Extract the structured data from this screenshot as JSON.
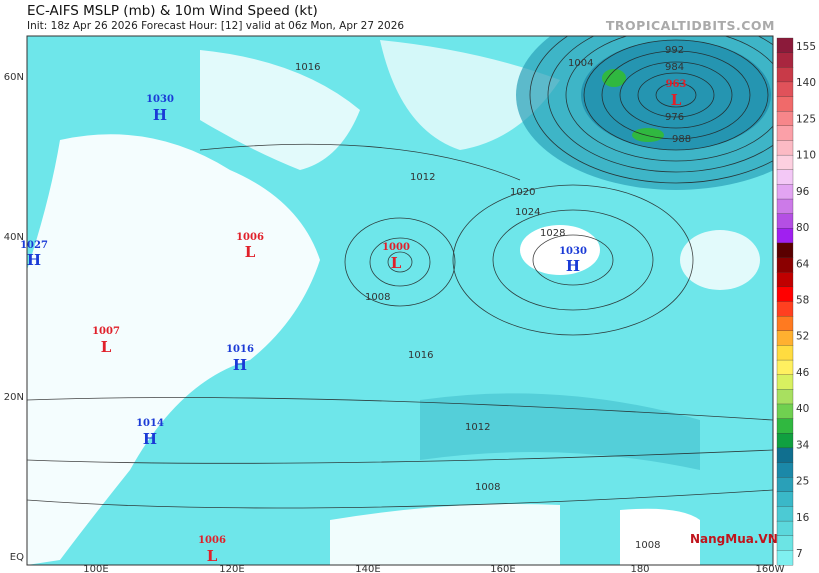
{
  "header": {
    "title": "EC-AIFS MSLP (mb) & 10m Wind Speed (kt)",
    "subtitle": "Init: 18z Apr 26 2026   Forecast Hour: [12]   valid at 06z Mon, Apr 27 2026",
    "brand": "TROPICALTIDBITS.COM"
  },
  "map": {
    "lat_labels": [
      "60N",
      "40N",
      "20N",
      "EQ"
    ],
    "lon_labels": [
      "100E",
      "120E",
      "140E",
      "160E",
      "180",
      "160W"
    ],
    "pressure_centers": [
      {
        "type": "H",
        "value": "1030",
        "region": "Mongolia"
      },
      {
        "type": "H",
        "value": "1027",
        "region": "Central Asia"
      },
      {
        "type": "L",
        "value": "1006",
        "region": "Korea"
      },
      {
        "type": "L",
        "value": "1000",
        "region": "East of Japan"
      },
      {
        "type": "H",
        "value": "1030",
        "region": "North Pacific"
      },
      {
        "type": "L",
        "value": "963",
        "region": "Bering Sea"
      },
      {
        "type": "L",
        "value": "1007",
        "region": "Sichuan"
      },
      {
        "type": "H",
        "value": "1016",
        "region": "Taiwan"
      },
      {
        "type": "H",
        "value": "1014",
        "region": "Indochina"
      },
      {
        "type": "L",
        "value": "1006",
        "region": "South China Sea"
      }
    ],
    "isobar_labels": [
      "1016",
      "1012",
      "1008",
      "1020",
      "1024",
      "1028",
      "1004",
      "992",
      "984",
      "976",
      "988",
      "1016",
      "1012",
      "1008",
      "1008"
    ]
  },
  "colorbar": {
    "ticks": [
      "155",
      "140",
      "125",
      "110",
      "96",
      "80",
      "64",
      "58",
      "52",
      "46",
      "40",
      "34",
      "25",
      "16",
      "7"
    ],
    "colors": [
      "#8b1a3a",
      "#a8263f",
      "#c83a48",
      "#e0525a",
      "#f06a6a",
      "#f7868a",
      "#fba0a8",
      "#fcbac4",
      "#fdd0e0",
      "#f3c8f6",
      "#e2a4f2",
      "#cc7ae8",
      "#b44fe4",
      "#a020f0",
      "#5a0000",
      "#8b0000",
      "#c00000",
      "#ff0000",
      "#ff4020",
      "#ff7a20",
      "#ffb030",
      "#ffdc40",
      "#fff060",
      "#d8f060",
      "#a8e060",
      "#70d050",
      "#30b840",
      "#10a040",
      "#106f8f",
      "#1b88a8",
      "#2aa0b8",
      "#3ab8c8",
      "#4ccad4",
      "#5cd8dc",
      "#6ce4e4",
      "#7ff0f0"
    ]
  },
  "watermark": "NangMua.VN"
}
